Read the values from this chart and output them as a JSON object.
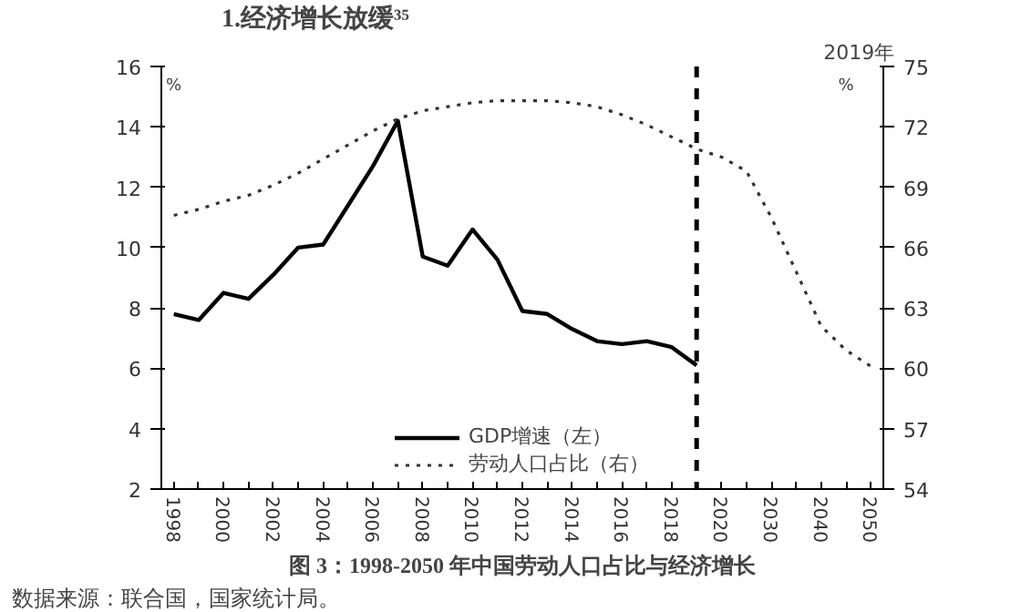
{
  "chart_data": {
    "type": "line",
    "title": "1.经济增长放缓³⁵",
    "annotations": [
      "2019年",
      "图 3：1998-2050 年中国劳动人口占比与经济增长",
      "数据来源：联合国，国家统计局。"
    ],
    "categories": [
      "1998",
      null,
      "2000",
      null,
      "2002",
      null,
      "2004",
      null,
      "2006",
      null,
      "2008",
      null,
      "2010",
      null,
      "2012",
      null,
      "2014",
      null,
      "2016",
      null,
      "2018",
      null,
      "2020",
      null,
      "2030",
      null,
      "2040",
      null,
      "2050"
    ],
    "series": [
      {
        "name": "GDP增速（左）",
        "color": "#000000",
        "line_style": "solid",
        "values": [
          7.8,
          7.6,
          8.5,
          8.3,
          9.1,
          10.0,
          10.1,
          11.4,
          12.7,
          14.2,
          9.7,
          9.4,
          10.6,
          9.6,
          7.9,
          7.8,
          7.3,
          6.9,
          6.8,
          6.9,
          6.7,
          6.1,
          null,
          null,
          null,
          null,
          null,
          null,
          null
        ]
      },
      {
        "name": "劳动人口占比（右）",
        "color": "#333333",
        "line_style": "dotted",
        "axis": "y2",
        "values": [
          67.6,
          67.9,
          68.3,
          68.6,
          69.1,
          69.7,
          70.4,
          71.1,
          71.8,
          72.4,
          72.8,
          73.0,
          73.2,
          73.3,
          73.3,
          73.3,
          73.2,
          73.0,
          72.6,
          72.1,
          71.5,
          70.9,
          70.5,
          69.8,
          67.5,
          64.8,
          62.1,
          60.9,
          60.1
        ]
      }
    ],
    "ylabel": "%",
    "y2label": "%",
    "ylim": [
      2,
      16
    ],
    "yticks": [
      2,
      4,
      6,
      8,
      10,
      12,
      14,
      16
    ],
    "y2lim": [
      54,
      75
    ],
    "y2ticks": [
      54,
      57,
      60,
      63,
      66,
      69,
      72,
      75
    ],
    "legend": "bottom"
  }
}
